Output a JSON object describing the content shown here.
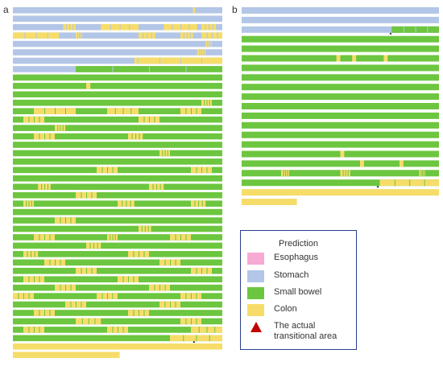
{
  "colors": {
    "esophagus": "#f7aad4",
    "stomach": "#b3c6e7",
    "small_bowel": "#6cc63f",
    "colon": "#f6dd6a",
    "transition_marker": "#c00000"
  },
  "panels": {
    "a": "a",
    "b": "b"
  },
  "legend": {
    "title": "Prediction",
    "items": [
      {
        "label": "Esophagus",
        "color": "#f7aad4"
      },
      {
        "label": "Stomach",
        "color": "#b3c6e7"
      },
      {
        "label": "Small bowel",
        "color": "#6cc63f"
      },
      {
        "label": "Colon",
        "color": "#f6dd6a"
      }
    ],
    "marker_label": "The actual transitional area",
    "marker_icon": "red-triangle-icon"
  },
  "chart_data": [
    {
      "type": "heatmap",
      "panel": "a",
      "description": "Per-frame predicted class, frames laid out in consecutive rows",
      "rows": [
        {
          "base": "stomach",
          "segments": [
            [
              "colon",
              0.86,
              0.87
            ]
          ]
        },
        {
          "base": "stomach",
          "segments": []
        },
        {
          "base": "stomach",
          "segments": [
            [
              "colon",
              0.24,
              0.3
            ],
            [
              "colon",
              0.42,
              0.6
            ],
            [
              "colon",
              0.72,
              0.88
            ],
            [
              "colon",
              0.9,
              0.97
            ]
          ]
        },
        {
          "base": "stomach",
          "segments": [
            [
              "colon",
              0.0,
              0.22
            ],
            [
              "colon",
              0.3,
              0.33
            ],
            [
              "colon",
              0.6,
              0.68
            ],
            [
              "colon",
              0.8,
              0.86
            ],
            [
              "colon",
              0.9,
              1.0
            ]
          ]
        },
        {
          "base": "stomach",
          "segments": [
            [
              "colon",
              0.92,
              0.95
            ]
          ]
        },
        {
          "base": "stomach",
          "segments": [
            [
              "colon",
              0.88,
              0.92
            ]
          ]
        },
        {
          "base": "stomach",
          "segments": [
            [
              "colon",
              0.58,
              0.64
            ],
            [
              "colon",
              0.6,
              1.0
            ]
          ],
          "mix": "small_bowel",
          "mix_from": 0.6
        },
        {
          "base": "stomach",
          "segments": [
            [
              "small_bowel",
              0.3,
              1.0
            ]
          ],
          "mix": "colon",
          "mix_from": 0.3
        },
        {
          "base": "small_bowel",
          "segments": []
        },
        {
          "base": "small_bowel",
          "segments": [
            [
              "colon",
              0.35,
              0.37
            ]
          ]
        },
        {
          "base": "small_bowel",
          "segments": []
        },
        {
          "base": "small_bowel",
          "segments": [
            [
              "colon",
              0.9,
              0.95
            ]
          ]
        },
        {
          "base": "small_bowel",
          "segments": [
            [
              "colon",
              0.1,
              0.3
            ],
            [
              "colon",
              0.45,
              0.6
            ],
            [
              "colon",
              0.8,
              0.9
            ]
          ]
        },
        {
          "base": "small_bowel",
          "segments": [
            [
              "colon",
              0.05,
              0.15
            ],
            [
              "colon",
              0.6,
              0.7
            ]
          ]
        },
        {
          "base": "small_bowel",
          "segments": [
            [
              "colon",
              0.2,
              0.25
            ]
          ]
        },
        {
          "base": "small_bowel",
          "segments": [
            [
              "colon",
              0.1,
              0.2
            ],
            [
              "colon",
              0.55,
              0.62
            ]
          ]
        },
        {
          "base": "small_bowel",
          "segments": []
        },
        {
          "base": "small_bowel",
          "segments": [
            [
              "colon",
              0.7,
              0.75
            ]
          ]
        },
        {
          "base": "small_bowel",
          "segments": []
        },
        {
          "base": "small_bowel",
          "segments": [
            [
              "colon",
              0.4,
              0.5
            ],
            [
              "colon",
              0.85,
              0.95
            ]
          ]
        },
        {
          "base": "small_bowel",
          "segments": []
        },
        {
          "base": "small_bowel",
          "segments": [
            [
              "colon",
              0.12,
              0.18
            ],
            [
              "colon",
              0.65,
              0.72
            ]
          ]
        },
        {
          "base": "small_bowel",
          "segments": [
            [
              "colon",
              0.3,
              0.4
            ]
          ]
        },
        {
          "base": "small_bowel",
          "segments": [
            [
              "colon",
              0.05,
              0.1
            ],
            [
              "colon",
              0.5,
              0.58
            ],
            [
              "colon",
              0.85,
              0.92
            ]
          ]
        },
        {
          "base": "small_bowel",
          "segments": []
        },
        {
          "base": "small_bowel",
          "segments": [
            [
              "colon",
              0.2,
              0.3
            ]
          ]
        },
        {
          "base": "small_bowel",
          "segments": [
            [
              "colon",
              0.6,
              0.66
            ]
          ]
        },
        {
          "base": "small_bowel",
          "segments": [
            [
              "colon",
              0.1,
              0.2
            ],
            [
              "colon",
              0.45,
              0.5
            ],
            [
              "colon",
              0.75,
              0.85
            ]
          ]
        },
        {
          "base": "small_bowel",
          "segments": [
            [
              "colon",
              0.35,
              0.42
            ]
          ]
        },
        {
          "base": "small_bowel",
          "segments": [
            [
              "colon",
              0.05,
              0.12
            ],
            [
              "colon",
              0.55,
              0.65
            ]
          ]
        },
        {
          "base": "small_bowel",
          "segments": [
            [
              "colon",
              0.15,
              0.25
            ],
            [
              "colon",
              0.7,
              0.8
            ]
          ]
        },
        {
          "base": "small_bowel",
          "segments": [
            [
              "colon",
              0.3,
              0.4
            ],
            [
              "colon",
              0.85,
              0.95
            ]
          ]
        },
        {
          "base": "small_bowel",
          "segments": [
            [
              "colon",
              0.05,
              0.15
            ],
            [
              "colon",
              0.5,
              0.6
            ]
          ]
        },
        {
          "base": "small_bowel",
          "segments": [
            [
              "colon",
              0.2,
              0.3
            ],
            [
              "colon",
              0.65,
              0.75
            ]
          ]
        },
        {
          "base": "small_bowel",
          "segments": [
            [
              "colon",
              0.0,
              0.1
            ],
            [
              "colon",
              0.4,
              0.5
            ],
            [
              "colon",
              0.8,
              0.9
            ]
          ]
        },
        {
          "base": "small_bowel",
          "segments": [
            [
              "colon",
              0.25,
              0.35
            ],
            [
              "colon",
              0.7,
              0.8
            ]
          ]
        },
        {
          "base": "small_bowel",
          "segments": [
            [
              "colon",
              0.1,
              0.2
            ],
            [
              "colon",
              0.55,
              0.65
            ]
          ]
        },
        {
          "base": "small_bowel",
          "segments": [
            [
              "colon",
              0.3,
              0.42
            ],
            [
              "colon",
              0.8,
              0.9
            ]
          ]
        },
        {
          "base": "small_bowel",
          "segments": [
            [
              "colon",
              0.05,
              0.15
            ],
            [
              "colon",
              0.45,
              0.55
            ],
            [
              "colon",
              0.85,
              1.0
            ]
          ]
        },
        {
          "base": "small_bowel",
          "segments": [
            [
              "colon",
              0.75,
              1.0
            ]
          ],
          "marker": 0.865
        },
        {
          "base": "colon",
          "segments": []
        },
        {
          "base": "colon",
          "segments": [],
          "length": 0.51
        }
      ]
    },
    {
      "type": "heatmap",
      "panel": "b",
      "description": "Per-frame predicted class, frames laid out in consecutive rows",
      "rows": [
        {
          "base": "stomach",
          "segments": []
        },
        {
          "base": "stomach",
          "segments": []
        },
        {
          "base": "stomach",
          "segments": [
            [
              "small_bowel",
              0.76,
              1.0
            ]
          ],
          "marker": 0.755
        },
        {
          "base": "small_bowel",
          "segments": []
        },
        {
          "base": "small_bowel",
          "segments": []
        },
        {
          "base": "small_bowel",
          "segments": [
            [
              "colon",
              0.48,
              0.5
            ],
            [
              "colon",
              0.56,
              0.58
            ],
            [
              "colon",
              0.72,
              0.74
            ]
          ]
        },
        {
          "base": "small_bowel",
          "segments": []
        },
        {
          "base": "small_bowel",
          "segments": []
        },
        {
          "base": "small_bowel",
          "segments": []
        },
        {
          "base": "small_bowel",
          "segments": []
        },
        {
          "base": "small_bowel",
          "segments": []
        },
        {
          "base": "small_bowel",
          "segments": []
        },
        {
          "base": "small_bowel",
          "segments": []
        },
        {
          "base": "small_bowel",
          "segments": []
        },
        {
          "base": "small_bowel",
          "segments": []
        },
        {
          "base": "small_bowel",
          "segments": [
            [
              "colon",
              0.5,
              0.52
            ]
          ]
        },
        {
          "base": "small_bowel",
          "segments": [
            [
              "colon",
              0.6,
              0.62
            ],
            [
              "colon",
              0.8,
              0.82
            ]
          ]
        },
        {
          "base": "small_bowel",
          "segments": [
            [
              "colon",
              0.2,
              0.24
            ],
            [
              "colon",
              0.5,
              0.55
            ],
            [
              "colon",
              0.9,
              0.93
            ]
          ]
        },
        {
          "base": "small_bowel",
          "segments": [
            [
              "colon",
              0.7,
              1.0
            ]
          ],
          "marker": 0.69
        },
        {
          "base": "colon",
          "segments": []
        },
        {
          "base": "colon",
          "segments": [],
          "length": 0.28
        }
      ]
    }
  ]
}
